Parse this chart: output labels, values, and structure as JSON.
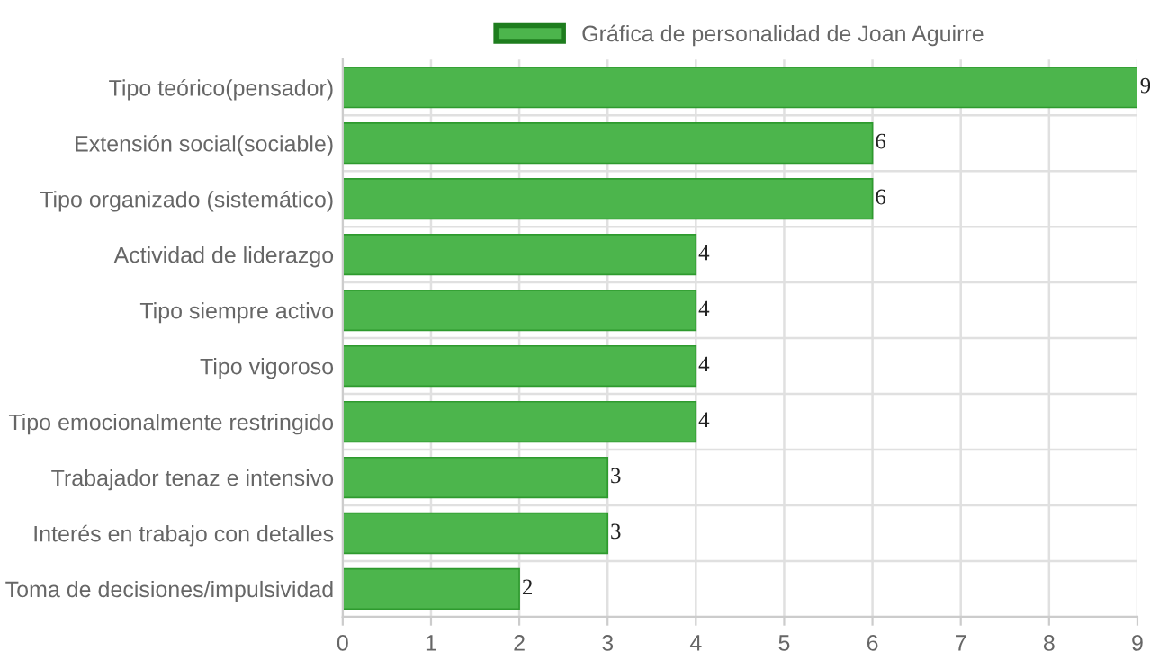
{
  "chart_data": {
    "type": "bar",
    "orientation": "horizontal",
    "categories": [
      "Tipo teórico(pensador)",
      "Extensión social(sociable)",
      "Tipo organizado (sistemático)",
      "Actividad de liderazgo",
      "Tipo siempre activo",
      "Tipo vigoroso",
      "Tipo emocionalmente restringido",
      "Trabajador tenaz e intensivo",
      "Interés en trabajo con detalles",
      "Toma de decisiones/impulsividad"
    ],
    "series": [
      {
        "name": "Gráfica de personalidad de Joan Aguirre",
        "color": "#4cb54c",
        "values": [
          9,
          6,
          6,
          4,
          4,
          4,
          4,
          3,
          3,
          2
        ]
      }
    ],
    "xlim": [
      0,
      9
    ],
    "xticks": [
      0,
      1,
      2,
      3,
      4,
      5,
      6,
      7,
      8,
      9
    ],
    "grid": true,
    "legend": "top",
    "data_labels": true
  }
}
